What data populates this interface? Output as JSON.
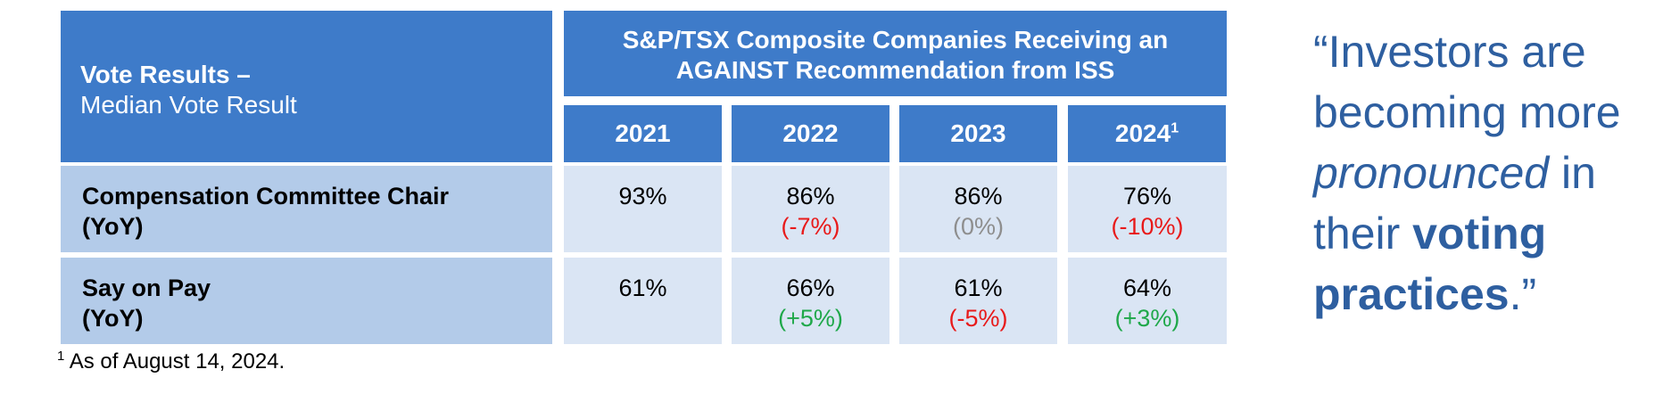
{
  "table": {
    "corner": {
      "title": "Vote Results –",
      "subtitle": "Median Vote Result"
    },
    "header_title": {
      "line1": "S&P/TSX Composite Companies Receiving an",
      "line2": "AGAINST Recommendation from ISS"
    },
    "years": [
      {
        "label": "2021",
        "footnote_mark": ""
      },
      {
        "label": "2022",
        "footnote_mark": ""
      },
      {
        "label": "2023",
        "footnote_mark": ""
      },
      {
        "label": "2024",
        "footnote_mark": "1"
      }
    ],
    "rows": [
      {
        "label_line1": "Compensation Committee Chair",
        "label_line2": "(YoY)",
        "cells": [
          {
            "value": "93%",
            "change": ""
          },
          {
            "value": "86%",
            "change": "(-7%)"
          },
          {
            "value": "86%",
            "change": "(0%)"
          },
          {
            "value": "76%",
            "change": "(-10%)"
          }
        ]
      },
      {
        "label_line1": "Say on Pay",
        "label_line2": "(YoY)",
        "cells": [
          {
            "value": "61%",
            "change": ""
          },
          {
            "value": "66%",
            "change": "(+5%)"
          },
          {
            "value": "61%",
            "change": "(-5%)"
          },
          {
            "value": "64%",
            "change": "(+3%)"
          }
        ]
      }
    ]
  },
  "footnote": {
    "mark": "1",
    "text": "As of August 14, 2024."
  },
  "quote": {
    "part1": "“Investors are becoming more ",
    "part2_italic": "pronounced",
    "part3": " in their ",
    "part4_bold": "voting practices",
    "part5": ".”"
  },
  "colors": {
    "header_dark": "#3e7bc9",
    "header_light": "#b3cbe9",
    "cell_bg": "#dae5f4",
    "negative": "#e81a1a",
    "neutral": "#8e8e8e",
    "positive": "#1fa84a",
    "quote_text": "#2e5fa0"
  }
}
